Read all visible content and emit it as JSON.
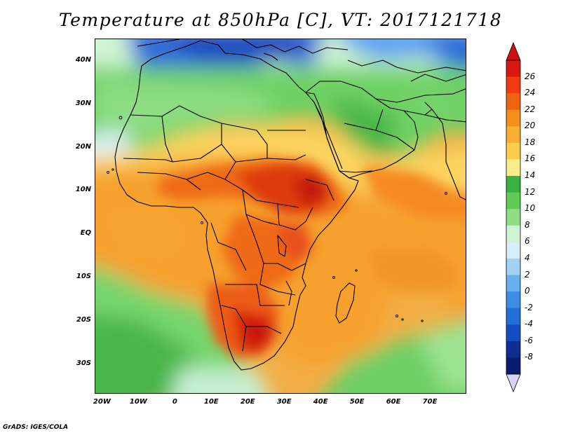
{
  "title": "Temperature at 850hPa [C], VT: 2017121718",
  "credit": "GrADS: IGES/COLA",
  "map": {
    "region": "Africa and Middle East",
    "variable": "Temperature at 850hPa",
    "units": "C",
    "valid_time": "2017121718",
    "lon_range": [
      -22,
      80
    ],
    "lat_range": [
      -37,
      45
    ],
    "lat_ticks": [
      {
        "value": 40,
        "label": "40N"
      },
      {
        "value": 30,
        "label": "30N"
      },
      {
        "value": 20,
        "label": "20N"
      },
      {
        "value": 10,
        "label": "10N"
      },
      {
        "value": 0,
        "label": "EQ"
      },
      {
        "value": -10,
        "label": "10S"
      },
      {
        "value": -20,
        "label": "20S"
      },
      {
        "value": -30,
        "label": "30S"
      }
    ],
    "lon_ticks": [
      {
        "value": -20,
        "label": "20W"
      },
      {
        "value": -10,
        "label": "10W"
      },
      {
        "value": 0,
        "label": "0"
      },
      {
        "value": 10,
        "label": "10E"
      },
      {
        "value": 20,
        "label": "20E"
      },
      {
        "value": 30,
        "label": "30E"
      },
      {
        "value": 40,
        "label": "40E"
      },
      {
        "value": 50,
        "label": "50E"
      },
      {
        "value": 60,
        "label": "60E"
      },
      {
        "value": 70,
        "label": "70E"
      }
    ],
    "colors": {
      "background_field": "#f0ac3c",
      "coastline": "#000000",
      "hot_core": "#cf2a0b",
      "cold_north": "#1f58c8"
    }
  },
  "colorbar": {
    "labels": [
      "26",
      "24",
      "22",
      "20",
      "18",
      "16",
      "14",
      "12",
      "10",
      "8",
      "6",
      "4",
      "2",
      "0",
      "-2",
      "-4",
      "-6",
      "-8"
    ],
    "colors": [
      "#d7190d",
      "#f03c10",
      "#ec6512",
      "#f58c1c",
      "#f9ae33",
      "#fbcf4c",
      "#fdec8c",
      "#38b341",
      "#5fcb55",
      "#90dd86",
      "#cff4d4",
      "#d8effa",
      "#9fd2f4",
      "#66b0ee",
      "#3c8ee4",
      "#226ed8",
      "#144dc2",
      "#0c2e94",
      "#0b1b6e"
    ],
    "arrow_top_color": "#cf1010",
    "arrow_bottom_color": "#d6d4ff"
  }
}
